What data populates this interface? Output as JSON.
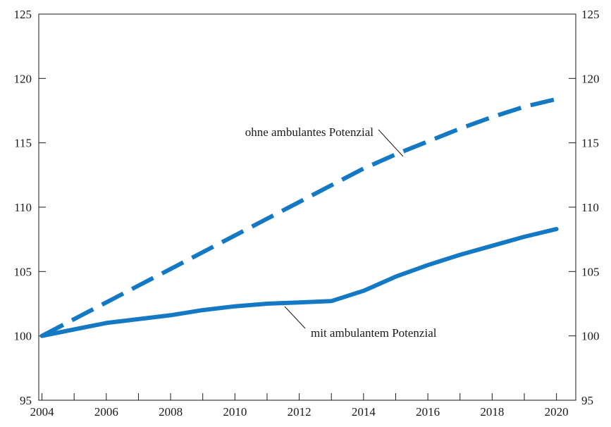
{
  "chart_data": {
    "type": "line",
    "title": "",
    "xlabel": "",
    "ylabel": "",
    "xlim": [
      2003.9,
      2020.6
    ],
    "ylim": [
      95,
      125
    ],
    "x_ticks": [
      2004,
      2006,
      2008,
      2010,
      2012,
      2014,
      2016,
      2018,
      2020
    ],
    "x_minor_ticks": [
      2005,
      2007,
      2009,
      2011,
      2013,
      2015,
      2017,
      2019
    ],
    "y_ticks": [
      95,
      100,
      105,
      110,
      115,
      120,
      125
    ],
    "right_axis_labels": true,
    "grid": false,
    "series": [
      {
        "label": "ohne ambulantes Potenzial",
        "style": "dashed",
        "color": "#1479c4",
        "x": [
          2004,
          2005,
          2006,
          2007,
          2008,
          2009,
          2010,
          2011,
          2012,
          2013,
          2014,
          2015,
          2016,
          2017,
          2018,
          2019,
          2020
        ],
        "y": [
          100.0,
          101.3,
          102.6,
          103.9,
          105.2,
          106.5,
          107.8,
          109.1,
          110.4,
          111.7,
          113.0,
          114.1,
          115.1,
          116.1,
          117.0,
          117.8,
          118.4
        ]
      },
      {
        "label": "mit ambulantem Potenzial",
        "style": "solid",
        "color": "#1479c4",
        "x": [
          2004,
          2005,
          2006,
          2007,
          2008,
          2009,
          2010,
          2011,
          2012,
          2013,
          2014,
          2015,
          2016,
          2017,
          2018,
          2019,
          2020
        ],
        "y": [
          100.0,
          100.5,
          101.0,
          101.3,
          101.6,
          102.0,
          102.3,
          102.5,
          102.6,
          102.7,
          103.5,
          104.6,
          105.5,
          106.3,
          107.0,
          107.7,
          108.3
        ]
      }
    ]
  }
}
